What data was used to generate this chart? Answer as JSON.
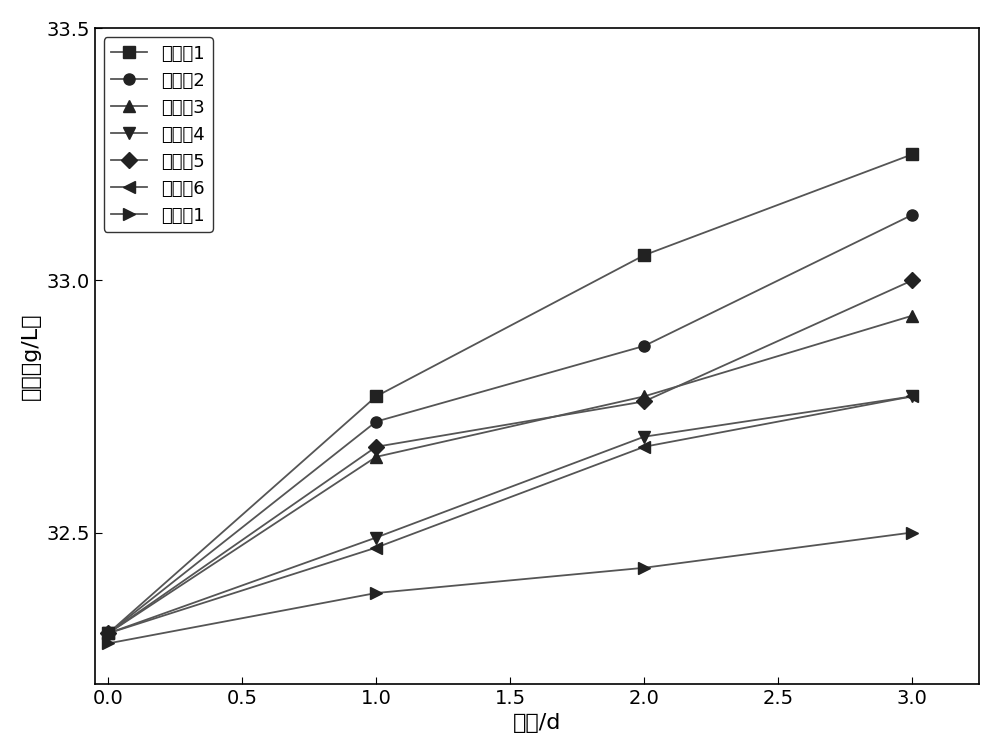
{
  "x": [
    0,
    1,
    2,
    3
  ],
  "series": [
    {
      "label": "实施例1",
      "values": [
        32.3,
        32.77,
        33.05,
        33.25
      ],
      "marker": "s"
    },
    {
      "label": "实施例2",
      "values": [
        32.3,
        32.72,
        32.87,
        33.13
      ],
      "marker": "o"
    },
    {
      "label": "实施例3",
      "values": [
        32.3,
        32.65,
        32.77,
        32.93
      ],
      "marker": "^"
    },
    {
      "label": "实施例4",
      "values": [
        32.3,
        32.49,
        32.69,
        32.77
      ],
      "marker": "v"
    },
    {
      "label": "实施例5",
      "values": [
        32.3,
        32.67,
        32.76,
        33.0
      ],
      "marker": "D"
    },
    {
      "label": "实施例6",
      "values": [
        32.3,
        32.47,
        32.67,
        32.77
      ],
      "marker": "<"
    },
    {
      "label": "对比例1",
      "values": [
        32.28,
        32.38,
        32.43,
        32.5
      ],
      "marker": ">"
    }
  ],
  "xlabel": "时间/d",
  "ylabel": "干重（g/L）",
  "xlim": [
    -0.05,
    3.25
  ],
  "ylim": [
    32.2,
    33.5
  ],
  "yticks": [
    32.5,
    33.0,
    33.5
  ],
  "xticks": [
    0.0,
    0.5,
    1.0,
    1.5,
    2.0,
    2.5,
    3.0
  ],
  "background_color": "#ffffff",
  "line_color": "#555555",
  "marker_color": "#222222",
  "marker_size": 8,
  "line_width": 1.3,
  "font_size_label": 16,
  "font_size_tick": 14,
  "font_size_legend": 13
}
